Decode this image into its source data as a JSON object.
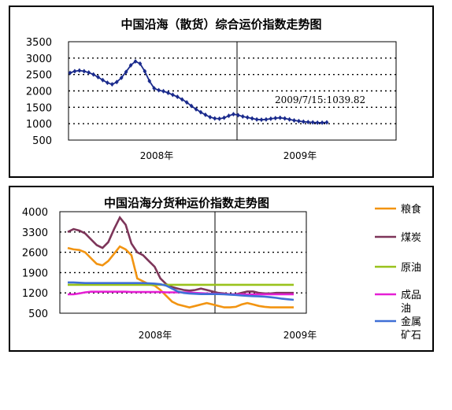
{
  "chart_data": [
    {
      "type": "line",
      "title": "中国沿海（散货）综合运价指数走势图",
      "ylim": [
        500,
        3500
      ],
      "yticks": [
        "3500",
        "3000",
        "2500",
        "2000",
        "1500",
        "1000",
        "500"
      ],
      "yticks_values": [
        3500,
        3000,
        2500,
        2000,
        1500,
        1000,
        500
      ],
      "x_labels": [
        "2008年",
        "2009年"
      ],
      "grid": true,
      "annotation": "2009/7/15:1039.82",
      "color": "#1a2a8c",
      "series": [
        {
          "values": [
            2550,
            2600,
            2620,
            2600,
            2560,
            2500,
            2420,
            2330,
            2250,
            2200,
            2270,
            2400,
            2580,
            2780,
            2900,
            2830,
            2600,
            2300,
            2080,
            2020,
            1990,
            1940,
            1880,
            1820,
            1740,
            1650,
            1540,
            1440,
            1350,
            1270,
            1200,
            1160,
            1150,
            1180,
            1240,
            1290,
            1260,
            1220,
            1190,
            1160,
            1130,
            1120,
            1130,
            1150,
            1170,
            1180,
            1160,
            1130,
            1100,
            1080,
            1060,
            1050,
            1040,
            1030,
            1030,
            1040
          ]
        }
      ]
    },
    {
      "type": "line",
      "title": "中国沿海分货种运价指数走势图",
      "ylim": [
        500,
        4000
      ],
      "yticks": [
        "4000",
        "3300",
        "2600",
        "1900",
        "1200",
        "500"
      ],
      "yticks_values": [
        4000,
        3300,
        2600,
        1900,
        1200,
        500
      ],
      "x_labels": [
        "2008年",
        "2009年"
      ],
      "grid": true,
      "legend_position": "right",
      "series": [
        {
          "name": "粮食",
          "color": "#f29411",
          "values": [
            2750,
            2700,
            2680,
            2600,
            2400,
            2200,
            2150,
            2300,
            2550,
            2800,
            2700,
            2500,
            1700,
            1600,
            1500,
            1450,
            1300,
            1100,
            900,
            800,
            750,
            700,
            750,
            800,
            850,
            800,
            750,
            700,
            700,
            720,
            800,
            850,
            800,
            750,
            720,
            700,
            700,
            700,
            700,
            700
          ]
        },
        {
          "name": "煤炭",
          "color": "#7d3559",
          "values": [
            3300,
            3400,
            3350,
            3250,
            3050,
            2850,
            2750,
            2950,
            3400,
            3800,
            3550,
            2900,
            2600,
            2500,
            2300,
            2100,
            1700,
            1500,
            1400,
            1350,
            1300,
            1280,
            1300,
            1350,
            1300,
            1250,
            1200,
            1180,
            1150,
            1150,
            1200,
            1250,
            1250,
            1200,
            1180,
            1180,
            1200,
            1200,
            1200,
            1200
          ]
        },
        {
          "name": "原油",
          "color": "#99c21c",
          "values": [
            1480,
            1480,
            1480,
            1480,
            1480,
            1480,
            1480,
            1480,
            1480,
            1480,
            1480,
            1480,
            1480,
            1480,
            1480,
            1480,
            1480,
            1480,
            1480,
            1480,
            1480,
            1480,
            1480,
            1480,
            1480,
            1480,
            1480,
            1480,
            1480,
            1480,
            1480,
            1480,
            1480,
            1480,
            1480,
            1480,
            1480,
            1480,
            1480,
            1480
          ]
        },
        {
          "name": "成品油",
          "color": "#e51fd4",
          "values": [
            1150,
            1150,
            1180,
            1220,
            1240,
            1240,
            1240,
            1240,
            1240,
            1240,
            1240,
            1230,
            1230,
            1230,
            1230,
            1230,
            1230,
            1220,
            1220,
            1220,
            1220,
            1220,
            1200,
            1190,
            1180,
            1170,
            1170,
            1160,
            1150,
            1150,
            1150,
            1150,
            1150,
            1150,
            1150,
            1150,
            1150,
            1150,
            1150,
            1150
          ]
        },
        {
          "name": "金属矿石",
          "color": "#3f6fd6",
          "values": [
            1560,
            1560,
            1550,
            1540,
            1540,
            1540,
            1540,
            1540,
            1540,
            1540,
            1540,
            1540,
            1540,
            1540,
            1530,
            1520,
            1500,
            1450,
            1350,
            1250,
            1200,
            1180,
            1170,
            1160,
            1160,
            1160,
            1160,
            1150,
            1140,
            1130,
            1110,
            1100,
            1090,
            1080,
            1070,
            1050,
            1030,
            1000,
            980,
            960
          ]
        }
      ]
    }
  ]
}
